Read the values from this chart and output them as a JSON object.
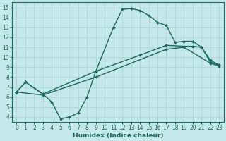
{
  "xlabel": "Humidex (Indice chaleur)",
  "bg_color": "#c5e8e8",
  "line_color": "#1a6b5a",
  "grid_color": "#b0d8d8",
  "xlim": [
    -0.5,
    23.5
  ],
  "ylim": [
    3.5,
    15.5
  ],
  "xticks": [
    0,
    1,
    2,
    3,
    4,
    5,
    6,
    7,
    8,
    9,
    10,
    11,
    12,
    13,
    14,
    15,
    16,
    17,
    18,
    19,
    20,
    21,
    22,
    23
  ],
  "yticks": [
    4,
    5,
    6,
    7,
    8,
    9,
    10,
    11,
    12,
    13,
    14,
    15
  ],
  "line1_x": [
    0,
    1,
    3,
    4,
    5,
    6,
    7,
    8,
    9,
    11,
    12,
    13,
    14,
    15,
    16,
    17,
    18,
    19,
    20,
    21,
    22,
    23
  ],
  "line1_y": [
    6.5,
    7.5,
    6.3,
    5.5,
    3.8,
    4.0,
    4.4,
    6.0,
    8.6,
    13.0,
    14.8,
    14.9,
    14.7,
    14.2,
    13.5,
    13.2,
    11.5,
    11.6,
    11.6,
    11.0,
    9.5,
    9.2
  ],
  "line2_x": [
    0,
    1,
    3,
    9,
    14,
    17,
    19,
    20,
    21,
    22,
    23
  ],
  "line2_y": [
    6.5,
    7.5,
    6.3,
    8.6,
    10.2,
    11.2,
    11.1,
    11.1,
    11.0,
    9.7,
    9.2
  ],
  "line3_x": [
    0,
    3,
    9,
    17,
    19,
    22,
    23
  ],
  "line3_y": [
    6.5,
    6.2,
    8.0,
    10.8,
    11.0,
    9.4,
    9.1
  ],
  "tick_fontsize": 5.5,
  "xlabel_fontsize": 6.5
}
